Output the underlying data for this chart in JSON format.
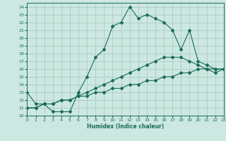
{
  "title": "",
  "xlabel": "Humidex (Indice chaleur)",
  "bg_color": "#cce8e0",
  "grid_color": "#aaccC4",
  "line_color": "#1a6b5a",
  "xlim": [
    0,
    23
  ],
  "ylim": [
    10,
    24.5
  ],
  "xticks": [
    0,
    1,
    2,
    3,
    4,
    5,
    6,
    7,
    8,
    9,
    10,
    11,
    12,
    13,
    14,
    15,
    16,
    17,
    18,
    19,
    20,
    21,
    22,
    23
  ],
  "yticks": [
    10,
    11,
    12,
    13,
    14,
    15,
    16,
    17,
    18,
    19,
    20,
    21,
    22,
    23,
    24
  ],
  "line1_x": [
    0,
    1,
    2,
    3,
    4,
    5,
    6,
    7,
    8,
    9,
    10,
    11,
    12,
    13,
    14,
    15,
    16,
    17,
    18,
    19,
    20,
    21,
    22,
    23
  ],
  "line1_y": [
    13,
    11.5,
    11.5,
    10.5,
    10.5,
    10.5,
    13,
    15,
    17.5,
    18.5,
    21.5,
    22,
    24,
    22.5,
    23,
    22.5,
    22,
    21,
    18.5,
    21,
    17,
    16.5,
    16,
    16
  ],
  "line2_x": [
    0,
    1,
    2,
    3,
    4,
    5,
    6,
    7,
    8,
    9,
    10,
    11,
    12,
    13,
    14,
    15,
    16,
    17,
    18,
    19,
    20,
    21,
    22,
    23
  ],
  "line2_y": [
    11,
    11,
    11.5,
    11.5,
    12,
    12,
    12.5,
    12.5,
    13,
    13,
    13.5,
    13.5,
    14,
    14,
    14.5,
    14.5,
    15,
    15,
    15.5,
    15.5,
    16,
    16,
    16,
    16
  ],
  "line3_x": [
    0,
    1,
    2,
    3,
    4,
    5,
    6,
    7,
    8,
    9,
    10,
    11,
    12,
    13,
    14,
    15,
    16,
    17,
    18,
    19,
    20,
    21,
    22,
    23
  ],
  "line3_y": [
    11,
    11,
    11.5,
    11.5,
    12,
    12,
    12.5,
    13,
    13.5,
    14,
    14.5,
    15,
    15.5,
    16,
    16.5,
    17,
    17.5,
    17.5,
    17.5,
    17,
    16.5,
    16,
    15.5,
    16
  ]
}
